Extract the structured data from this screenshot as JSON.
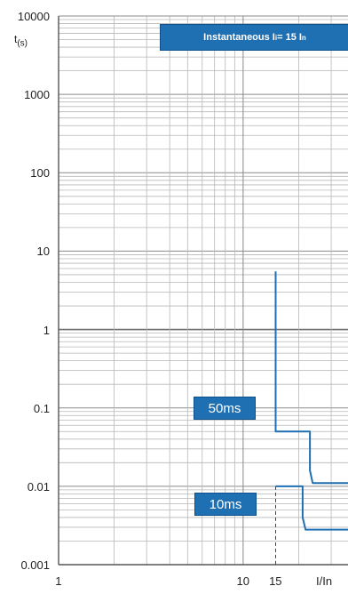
{
  "chart_data": {
    "type": "line",
    "title_parts": {
      "main": "Instantaneous I",
      "sub": "i",
      "rest": "= 15 I",
      "sub2": "n"
    },
    "xlabel": "I/In",
    "ylabel_main": "t",
    "ylabel_unit": "(s)",
    "x_scale": "log",
    "y_scale": "log",
    "xlim": [
      1,
      37
    ],
    "ylim": [
      0.001,
      10000
    ],
    "grid": true,
    "y_ticks": [
      {
        "value": 10000,
        "label": "10000"
      },
      {
        "value": 1000,
        "label": "1000"
      },
      {
        "value": 100,
        "label": "100"
      },
      {
        "value": 10,
        "label": "10"
      },
      {
        "value": 1,
        "label": "1"
      },
      {
        "value": 0.1,
        "label": "0.1"
      },
      {
        "value": 0.01,
        "label": "0.01"
      },
      {
        "value": 0.001,
        "label": "0.001"
      }
    ],
    "x_ticks": [
      {
        "value": 1,
        "label": "1"
      },
      {
        "value": 10,
        "label": "10"
      },
      {
        "value": 15,
        "label": "15"
      }
    ],
    "series": [
      {
        "color": "#1f6fb3",
        "points": [
          [
            15,
            5.5
          ],
          [
            15,
            0.05
          ],
          [
            23,
            0.05
          ],
          [
            23,
            0.016
          ],
          [
            23.8,
            0.011
          ],
          [
            37,
            0.011
          ]
        ]
      },
      {
        "color": "#1f6fb3",
        "points": [
          [
            15,
            0.01
          ],
          [
            21,
            0.01
          ],
          [
            21,
            0.004
          ],
          [
            21.8,
            0.0028
          ],
          [
            37,
            0.0028
          ]
        ]
      }
    ],
    "reference_line": {
      "x": 15
    },
    "annotations": [
      {
        "label": "50ms",
        "value": 0.05
      },
      {
        "label": "10ms",
        "value": 0.01
      }
    ]
  }
}
